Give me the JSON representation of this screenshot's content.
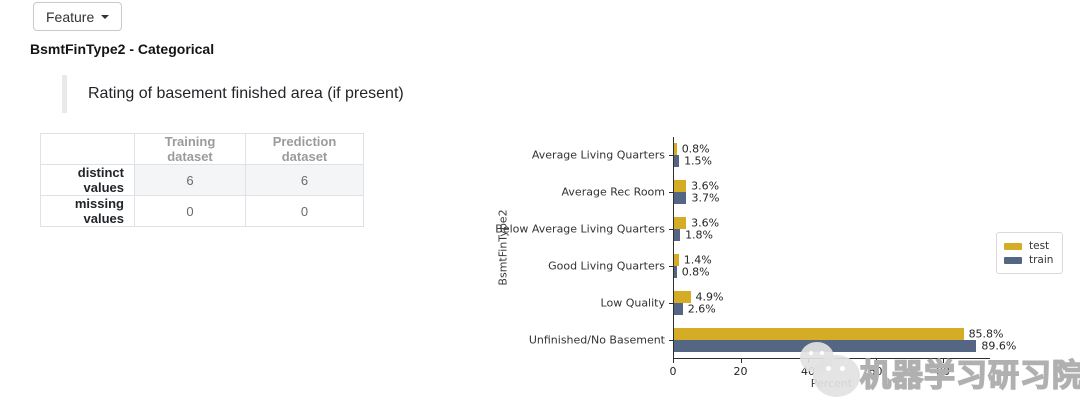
{
  "feature_selector": {
    "label": "Feature"
  },
  "header": {
    "title": "BsmtFinType2 - Categorical"
  },
  "description": "Rating of basement finished area (if present)",
  "stats_table": {
    "columns": [
      "",
      "Training dataset",
      "Prediction dataset"
    ],
    "rows": [
      {
        "label": "distinct values",
        "values": [
          "6",
          "6"
        ]
      },
      {
        "label": "missing values",
        "values": [
          "0",
          "0"
        ]
      }
    ]
  },
  "chart_data": {
    "type": "bar",
    "orientation": "horizontal",
    "xlabel": "Percent",
    "ylabel": "BsmtFinType2",
    "xlim": [
      0,
      94
    ],
    "xticks": [
      0,
      20,
      40,
      60,
      80
    ],
    "grid": false,
    "legend_position": "right",
    "categories": [
      "Average Living Quarters",
      "Average Rec Room",
      "Below Average Living Quarters",
      "Good Living Quarters",
      "Low Quality",
      "Unfinished/No Basement"
    ],
    "series": [
      {
        "name": "test",
        "color": "#D4AC26",
        "values": [
          0.8,
          3.6,
          3.6,
          1.4,
          4.9,
          85.8
        ],
        "labels": [
          "0.8%",
          "3.6%",
          "3.6%",
          "1.4%",
          "4.9%",
          "85.8%"
        ]
      },
      {
        "name": "train",
        "color": "#556685",
        "values": [
          1.5,
          3.7,
          1.8,
          0.8,
          2.6,
          89.6
        ],
        "labels": [
          "1.5%",
          "3.7%",
          "1.8%",
          "0.8%",
          "2.6%",
          "89.6%"
        ]
      }
    ]
  },
  "watermark": {
    "text": "机器学习研习院",
    "icon": "wechat-icon"
  }
}
